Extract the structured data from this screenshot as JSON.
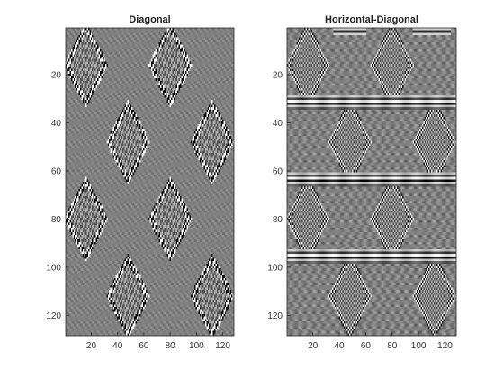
{
  "chart_data": [
    {
      "type": "heatmap",
      "title": "Diagonal",
      "colormap": "gray",
      "x_range": [
        0.5,
        128.5
      ],
      "y_range": [
        0.5,
        128.5
      ],
      "y_reversed": true,
      "x_ticks": [
        20,
        40,
        60,
        80,
        100,
        120
      ],
      "y_ticks": [
        20,
        40,
        60,
        80,
        100,
        120
      ],
      "grid": false,
      "legend": "none"
    },
    {
      "type": "heatmap",
      "title": "Horizontal-Diagonal",
      "colormap": "gray",
      "x_range": [
        0.5,
        128.5
      ],
      "y_range": [
        0.5,
        128.5
      ],
      "y_reversed": true,
      "x_ticks": [
        20,
        40,
        60,
        80,
        100,
        120
      ],
      "y_ticks": [
        20,
        40,
        60,
        80,
        100,
        120
      ],
      "grid": false,
      "legend": "none"
    }
  ]
}
